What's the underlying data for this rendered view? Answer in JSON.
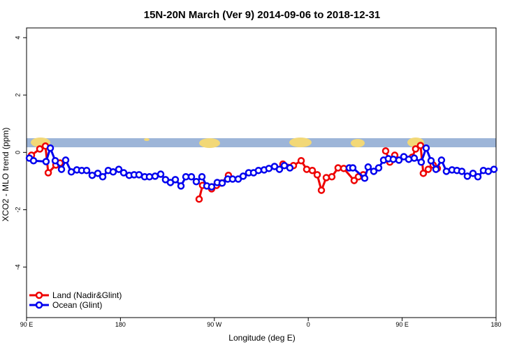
{
  "chart_data": {
    "type": "line",
    "title": "15N-20N March (Ver 9)   2014-09-06 to 2018-12-31",
    "x_label": "Longitude (deg E)",
    "y_label": "XCO2 - MLO trend (ppm)",
    "xlim": [
      90,
      540
    ],
    "ylim": [
      -5.76,
      4.34
    ],
    "xticks": [
      {
        "value": 90,
        "label": "90 E"
      },
      {
        "value": 180,
        "label": "180"
      },
      {
        "value": 270,
        "label": "90 W"
      },
      {
        "value": 360,
        "label": "0"
      },
      {
        "value": 450,
        "label": "90 E"
      },
      {
        "value": 540,
        "label": "180"
      }
    ],
    "yticks": [
      -4,
      -2,
      0,
      2,
      4
    ],
    "legend": "bottom-left",
    "series": [
      {
        "name": "Land (Nadir&Glint)",
        "color": "#ee0000",
        "x": [
          94.7,
          102.7,
          108.1,
          110.8,
          118.1,
          122.1,
          200,
          255.4,
          258.7,
          267.4,
          272.1,
          276.8,
          283.5,
          310,
          335.7,
          345.8,
          353.2,
          358.5,
          363.9,
          368.6,
          372.6,
          377.3,
          382.6,
          388.6,
          394.0,
          404.0,
          408.1,
          412.7,
          425,
          434.2,
          438.2,
          442.9,
          455,
          459.6,
          462.9,
          467.6,
          470.3,
          475.0,
          479.7,
          483.7
        ],
        "values": [
          -0.1,
          0.12,
          0.22,
          -0.71,
          -0.44,
          -0.37,
          null,
          -1.63,
          -1.15,
          -1.27,
          -1.15,
          -1.07,
          -0.8,
          null,
          -0.41,
          -0.46,
          -0.29,
          -0.59,
          -0.63,
          -0.78,
          -1.32,
          -0.88,
          -0.85,
          -0.54,
          -0.56,
          -0.98,
          -0.85,
          -0.78,
          null,
          0.05,
          -0.34,
          -0.1,
          null,
          -0.17,
          0.12,
          0.24,
          -0.73,
          -0.59,
          -0.44,
          -0.56
        ]
      },
      {
        "name": "Ocean (Glint)",
        "color": "#0000ee",
        "x": [
          92.7,
          96.7,
          108.7,
          112.8,
          117.5,
          123.5,
          127.5,
          132.9,
          138.2,
          142.9,
          147.6,
          152.9,
          158.3,
          163.0,
          168.3,
          173.0,
          178.4,
          183.1,
          188.4,
          193.1,
          197.8,
          203.2,
          207.8,
          213.2,
          218.6,
          223.2,
          227.9,
          232.6,
          238.0,
          242.7,
          248.0,
          252.7,
          258.1,
          262.8,
          267.4,
          272.8,
          277.5,
          282.8,
          287.5,
          292.9,
          297.6,
          302.9,
          307.6,
          312.3,
          317.7,
          322.3,
          327.7,
          332.4,
          337.1,
          342.4,
          370,
          399.3,
          402.7,
          414.1,
          417.4,
          422.8,
          427.5,
          432.2,
          436.8,
          441.5,
          446.9,
          451.6,
          456.3,
          461.6,
          468.3,
          473.0,
          477.7,
          482.4,
          487.7,
          492.4,
          497.8,
          502.5,
          507.2,
          512.5,
          517.9,
          522.6,
          527.9,
          532.6,
          538.0
        ],
        "values": [
          -0.2,
          -0.29,
          -0.32,
          0.15,
          -0.29,
          -0.59,
          -0.27,
          -0.68,
          -0.61,
          -0.63,
          -0.63,
          -0.8,
          -0.73,
          -0.85,
          -0.63,
          -0.68,
          -0.59,
          -0.71,
          -0.8,
          -0.78,
          -0.78,
          -0.85,
          -0.85,
          -0.83,
          -0.76,
          -0.95,
          -1.05,
          -0.95,
          -1.17,
          -0.85,
          -0.85,
          -1.02,
          -0.85,
          -1.17,
          -1.2,
          -1.05,
          -1.07,
          -0.93,
          -0.93,
          -0.93,
          -0.83,
          -0.71,
          -0.71,
          -0.63,
          -0.61,
          -0.56,
          -0.49,
          -0.59,
          -0.46,
          -0.54,
          null,
          -0.54,
          -0.54,
          -0.9,
          -0.51,
          -0.66,
          -0.54,
          -0.27,
          -0.22,
          -0.24,
          -0.27,
          -0.15,
          -0.24,
          -0.2,
          -0.34,
          0.15,
          -0.29,
          -0.59,
          -0.27,
          -0.66,
          -0.61,
          -0.63,
          -0.66,
          -0.83,
          -0.73,
          -0.85,
          -0.63,
          -0.66,
          -0.59
        ]
      }
    ]
  }
}
